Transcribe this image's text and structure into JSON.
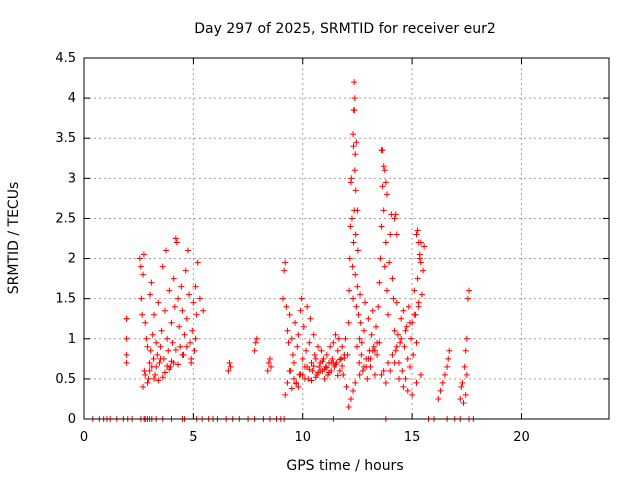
{
  "chart_data": {
    "type": "scatter",
    "title": "Day 297 of 2025, SRMTID for receiver eur2",
    "xlabel": "GPS time / hours",
    "ylabel": "SRMTID / TECUs",
    "xlim": [
      0,
      24
    ],
    "ylim": [
      0,
      4.5
    ],
    "xticks": [
      0,
      5,
      10,
      15,
      20
    ],
    "yticks": [
      0,
      0.5,
      1,
      1.5,
      2,
      2.5,
      3,
      3.5,
      4,
      4.5
    ],
    "grid": true,
    "marker": "+",
    "marker_color": "#ff0000",
    "series": [
      {
        "name": "SRMTID",
        "x": [
          0.4,
          0.7,
          0.9,
          1.05,
          1.2,
          1.5,
          1.8,
          2.0,
          2.2,
          2.6,
          2.75,
          2.8,
          2.9,
          3.0,
          3.1,
          3.3,
          3.6,
          4.0,
          4.5,
          4.6,
          5.15,
          5.4,
          5.7,
          5.9,
          6.1,
          6.5,
          6.8,
          7.1,
          7.5,
          7.8,
          8.2,
          8.5,
          8.8,
          9.0,
          9.15,
          11.4,
          13.8,
          15.75,
          16.0,
          16.6,
          16.95,
          17.2,
          17.6,
          17.8,
          1.95,
          1.95,
          1.95,
          1.95,
          1.95,
          2.55,
          2.6,
          2.62,
          2.66,
          2.7,
          2.74,
          2.76,
          2.8,
          2.85,
          2.9,
          2.95,
          3.0,
          3.02,
          3.05,
          3.08,
          3.1,
          3.14,
          3.18,
          3.2,
          3.25,
          3.3,
          3.35,
          3.4,
          3.45,
          3.5,
          3.55,
          3.6,
          3.65,
          3.7,
          3.75,
          3.8,
          3.85,
          3.9,
          3.95,
          4.0,
          4.05,
          4.1,
          4.15,
          4.2,
          4.25,
          4.3,
          4.35,
          4.4,
          4.45,
          4.5,
          4.55,
          4.6,
          4.65,
          4.7,
          4.75,
          4.8,
          4.85,
          4.9,
          4.95,
          5.0,
          5.05,
          5.1,
          5.15,
          5.2,
          5.3,
          5.45,
          2.7,
          2.8,
          2.9,
          3.0,
          3.2,
          3.3,
          3.5,
          3.7,
          3.9,
          4.1,
          4.3,
          4.5,
          4.7,
          4.9,
          5.1,
          3.4,
          3.6,
          3.8,
          4.0,
          4.2,
          6.6,
          6.65,
          6.7,
          7.8,
          7.85,
          7.9,
          8.4,
          8.45,
          8.5,
          8.55,
          9.1,
          9.15,
          9.2,
          9.25,
          9.3,
          9.35,
          9.4,
          9.45,
          9.5,
          9.55,
          9.6,
          9.65,
          9.7,
          9.75,
          9.8,
          9.85,
          9.9,
          9.95,
          10.0,
          10.05,
          10.1,
          10.15,
          10.2,
          10.25,
          10.3,
          10.35,
          10.4,
          10.45,
          10.5,
          10.55,
          10.6,
          10.65,
          10.7,
          10.75,
          10.8,
          10.85,
          10.9,
          10.95,
          11.0,
          11.05,
          11.1,
          11.15,
          11.2,
          11.25,
          11.3,
          11.35,
          11.4,
          11.45,
          11.5,
          11.55,
          11.6,
          11.65,
          11.7,
          11.75,
          11.8,
          11.85,
          11.9,
          11.95,
          9.2,
          9.3,
          9.4,
          9.6,
          9.8,
          10.0,
          10.2,
          10.4,
          10.6,
          10.8,
          11.0,
          11.2,
          11.4,
          11.6,
          11.8,
          9.5,
          9.7,
          9.9,
          10.1,
          10.3,
          10.5,
          10.7,
          10.9,
          11.1,
          11.3,
          11.5,
          11.7,
          11.9,
          12.0,
          12.05,
          12.1,
          12.12,
          12.15,
          12.18,
          12.2,
          12.22,
          12.25,
          12.28,
          12.3,
          12.32,
          12.35,
          12.38,
          12.4,
          12.42,
          12.45,
          12.48,
          12.5,
          12.52,
          12.55,
          12.58,
          12.6,
          12.62,
          12.65,
          12.68,
          12.7,
          12.75,
          12.8,
          12.85,
          12.9,
          12.95,
          13.0,
          13.05,
          13.1,
          13.15,
          13.2,
          13.25,
          13.3,
          13.35,
          13.4,
          13.45,
          13.5,
          13.55,
          13.6,
          13.65,
          13.7,
          13.75,
          13.8,
          13.85,
          13.9,
          13.95,
          14.0,
          14.05,
          14.1,
          14.15,
          14.2,
          14.25,
          14.3,
          14.35,
          14.4,
          14.45,
          14.5,
          14.55,
          14.6,
          14.65,
          14.7,
          14.75,
          14.8,
          14.85,
          14.9,
          14.95,
          15.0,
          15.05,
          15.1,
          15.15,
          15.2,
          15.25,
          15.3,
          15.35,
          15.4,
          15.45,
          15.5,
          15.55,
          12.3,
          12.32,
          12.33,
          12.35,
          12.36,
          12.38,
          12.4,
          12.42,
          12.45,
          12.5,
          13.6,
          13.65,
          13.7,
          13.75,
          13.8,
          13.85,
          14.2,
          14.25,
          14.3,
          15.2,
          15.25,
          15.3,
          15.35,
          15.4,
          12.1,
          12.2,
          12.3,
          12.4,
          12.6,
          12.8,
          13.0,
          13.2,
          13.4,
          13.6,
          13.8,
          14.0,
          14.2,
          14.4,
          14.6,
          14.8,
          15.0,
          15.2,
          15.4,
          12.9,
          13.1,
          13.3,
          13.5,
          13.7,
          13.9,
          14.1,
          14.3,
          14.5,
          14.7,
          14.9,
          15.1,
          15.3,
          16.2,
          16.3,
          16.4,
          16.5,
          16.6,
          16.65,
          16.7,
          17.2,
          17.3,
          17.4,
          17.45,
          17.5,
          17.55,
          17.6,
          17.35,
          17.45,
          17.25,
          17.5
        ],
        "y": [
          0,
          0,
          0,
          0,
          0,
          0,
          0,
          0,
          0,
          0,
          0,
          0,
          0,
          0,
          0,
          0,
          0,
          0,
          0,
          0,
          0,
          0,
          0,
          0,
          0,
          0,
          0,
          0,
          0,
          0,
          0,
          0,
          0,
          0,
          0,
          0,
          0,
          0,
          0,
          0,
          0,
          0,
          0,
          0,
          0.7,
          0.8,
          1.0,
          1.25,
          1.25,
          2.0,
          1.9,
          1.5,
          1.3,
          1.8,
          2.05,
          0.6,
          1.2,
          1.0,
          0.9,
          0.5,
          0.7,
          1.55,
          0.85,
          1.7,
          0.65,
          1.05,
          0.75,
          1.3,
          0.55,
          0.95,
          0.8,
          1.45,
          0.7,
          0.9,
          1.1,
          1.9,
          0.75,
          1.35,
          2.1,
          1.0,
          0.85,
          1.6,
          0.65,
          1.2,
          0.95,
          1.75,
          1.4,
          2.25,
          2.2,
          1.5,
          1.15,
          0.9,
          1.65,
          1.35,
          0.8,
          1.05,
          1.85,
          1.25,
          2.1,
          1.55,
          0.95,
          0.7,
          1.1,
          1.45,
          0.85,
          1.65,
          1.3,
          1.95,
          1.5,
          1.35,
          0.4,
          0.55,
          0.45,
          0.6,
          0.5,
          0.65,
          0.75,
          0.58,
          0.62,
          0.7,
          0.68,
          0.8,
          0.9,
          0.75,
          1.0,
          0.48,
          0.52,
          0.66,
          0.72,
          0.86,
          0.6,
          0.7,
          0.65,
          0.85,
          0.95,
          1.0,
          0.6,
          0.7,
          0.75,
          0.65,
          1.5,
          1.85,
          1.95,
          1.4,
          1.1,
          0.95,
          1.3,
          0.6,
          1.0,
          0.8,
          0.7,
          1.2,
          0.45,
          0.9,
          1.05,
          0.55,
          1.35,
          1.5,
          0.75,
          1.15,
          0.65,
          0.85,
          1.4,
          0.5,
          0.95,
          1.25,
          0.7,
          0.6,
          1.05,
          0.8,
          0.75,
          0.55,
          0.9,
          0.65,
          0.7,
          0.85,
          0.6,
          0.75,
          0.5,
          0.65,
          0.8,
          0.55,
          0.7,
          0.9,
          0.6,
          0.75,
          0.95,
          0.65,
          1.05,
          0.7,
          0.85,
          1.0,
          0.6,
          0.75,
          0.9,
          0.55,
          0.8,
          1.0,
          0.3,
          0.45,
          0.6,
          0.5,
          0.4,
          0.55,
          0.65,
          0.48,
          0.52,
          0.6,
          0.62,
          0.58,
          0.7,
          0.54,
          0.66,
          0.38,
          0.44,
          0.56,
          0.5,
          0.62,
          0.66,
          0.58,
          0.72,
          0.64,
          0.7,
          0.68,
          0.74,
          0.76,
          0.4,
          0.8,
          1.2,
          1.6,
          2.0,
          2.4,
          2.95,
          3.0,
          2.5,
          1.9,
          1.5,
          2.2,
          2.6,
          3.1,
          1.8,
          2.3,
          1.4,
          0.9,
          1.65,
          2.1,
          1.3,
          0.7,
          1.0,
          1.55,
          1.2,
          0.8,
          0.95,
          0.6,
          1.1,
          1.45,
          0.75,
          0.5,
          1.25,
          0.85,
          0.65,
          1.05,
          1.35,
          0.9,
          0.55,
          1.15,
          0.8,
          1.4,
          1.7,
          2.0,
          2.4,
          2.9,
          2.6,
          1.9,
          2.2,
          1.6,
          1.3,
          1.95,
          2.3,
          2.55,
          1.75,
          1.5,
          1.1,
          0.85,
          1.45,
          1.05,
          0.7,
          0.95,
          1.25,
          0.6,
          1.35,
          0.9,
          0.5,
          1.15,
          0.75,
          1.4,
          0.65,
          1.0,
          1.2,
          0.8,
          1.6,
          1.3,
          0.95,
          1.75,
          1.45,
          2.0,
          2.2,
          1.55,
          1.85,
          2.15,
          3.55,
          3.4,
          3.85,
          4.2,
          3.85,
          4.0,
          3.3,
          2.85,
          3.45,
          2.6,
          3.35,
          3.35,
          3.15,
          3.1,
          2.95,
          2.8,
          2.5,
          2.55,
          2.3,
          2.3,
          2.35,
          2.2,
          2.05,
          1.95,
          0.15,
          0.25,
          0.35,
          0.45,
          0.55,
          0.65,
          0.75,
          0.85,
          0.95,
          0.55,
          0.45,
          0.6,
          0.7,
          0.5,
          0.4,
          0.35,
          0.3,
          0.45,
          0.55,
          0.65,
          0.75,
          0.85,
          0.95,
          0.6,
          0.7,
          0.8,
          0.9,
          1.0,
          1.1,
          1.2,
          1.3,
          1.4,
          0.25,
          0.35,
          0.45,
          0.55,
          0.65,
          0.75,
          0.85,
          0.25,
          0.45,
          0.65,
          0.85,
          1.0,
          1.5,
          1.6,
          0.2,
          0.3,
          0.4,
          0.55
        ]
      }
    ]
  }
}
